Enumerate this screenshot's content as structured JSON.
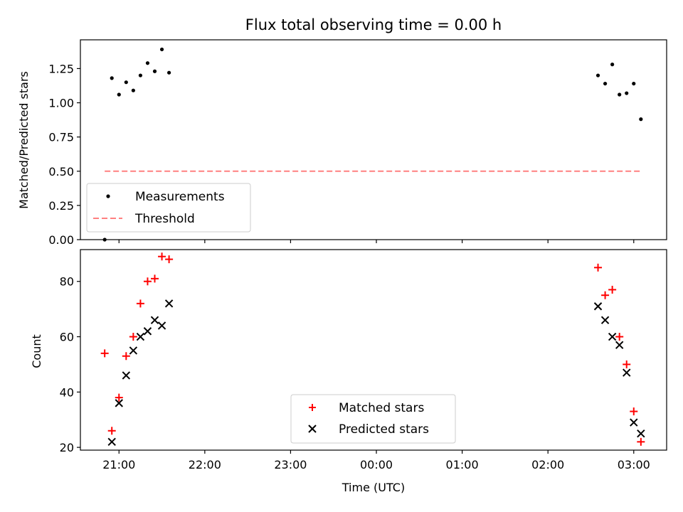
{
  "chart_data": [
    {
      "type": "scatter",
      "title": "Flux total observing time = 0.00 h",
      "xlabel": "",
      "ylabel": "Matched/Predicted stars",
      "x_ticks": [
        "21:00",
        "22:00",
        "23:00",
        "00:00",
        "01:00",
        "02:00",
        "03:00"
      ],
      "x_range": [
        "20:33",
        "03:23"
      ],
      "ylim": [
        0,
        1.46
      ],
      "y_ticks": [
        "0.00",
        "0.25",
        "0.50",
        "0.75",
        "1.00",
        "1.25"
      ],
      "legend_position": "lower-left",
      "series": [
        {
          "name": "Measurements",
          "marker": "dot",
          "color": "#000000",
          "points": [
            {
              "x": "20:50",
              "y": 0.0
            },
            {
              "x": "20:55",
              "y": 1.18
            },
            {
              "x": "21:00",
              "y": 1.06
            },
            {
              "x": "21:05",
              "y": 1.15
            },
            {
              "x": "21:10",
              "y": 1.09
            },
            {
              "x": "21:15",
              "y": 1.2
            },
            {
              "x": "21:20",
              "y": 1.29
            },
            {
              "x": "21:25",
              "y": 1.23
            },
            {
              "x": "21:30",
              "y": 1.39
            },
            {
              "x": "21:35",
              "y": 1.22
            },
            {
              "x": "02:35",
              "y": 1.2
            },
            {
              "x": "02:40",
              "y": 1.14
            },
            {
              "x": "02:45",
              "y": 1.28
            },
            {
              "x": "02:50",
              "y": 1.06
            },
            {
              "x": "02:55",
              "y": 1.07
            },
            {
              "x": "03:00",
              "y": 1.14
            },
            {
              "x": "03:05",
              "y": 0.88
            }
          ]
        },
        {
          "name": "Threshold",
          "marker": "dashed-line",
          "color": "#ff8080",
          "points": [
            {
              "x": "20:50",
              "y": 0.5
            },
            {
              "x": "03:05",
              "y": 0.5
            }
          ]
        }
      ]
    },
    {
      "type": "scatter",
      "title": "",
      "xlabel": "Time (UTC)",
      "ylabel": "Count",
      "x_ticks": [
        "21:00",
        "22:00",
        "23:00",
        "00:00",
        "01:00",
        "02:00",
        "03:00"
      ],
      "x_range": [
        "20:33",
        "03:23"
      ],
      "ylim": [
        19,
        91.5
      ],
      "y_ticks": [
        "20",
        "40",
        "60",
        "80"
      ],
      "legend_position": "lower-center",
      "series": [
        {
          "name": "Matched stars",
          "marker": "plus",
          "color": "#ff0000",
          "points": [
            {
              "x": "20:50",
              "y": 54
            },
            {
              "x": "20:55",
              "y": 26
            },
            {
              "x": "21:00",
              "y": 38
            },
            {
              "x": "21:05",
              "y": 53
            },
            {
              "x": "21:10",
              "y": 60
            },
            {
              "x": "21:15",
              "y": 72
            },
            {
              "x": "21:20",
              "y": 80
            },
            {
              "x": "21:25",
              "y": 81
            },
            {
              "x": "21:30",
              "y": 89
            },
            {
              "x": "21:35",
              "y": 88
            },
            {
              "x": "02:35",
              "y": 85
            },
            {
              "x": "02:40",
              "y": 75
            },
            {
              "x": "02:45",
              "y": 77
            },
            {
              "x": "02:50",
              "y": 60
            },
            {
              "x": "02:55",
              "y": 50
            },
            {
              "x": "03:00",
              "y": 33
            },
            {
              "x": "03:05",
              "y": 22
            }
          ]
        },
        {
          "name": "Predicted stars",
          "marker": "x",
          "color": "#000000",
          "points": [
            {
              "x": "20:55",
              "y": 22
            },
            {
              "x": "21:00",
              "y": 36
            },
            {
              "x": "21:05",
              "y": 46
            },
            {
              "x": "21:10",
              "y": 55
            },
            {
              "x": "21:15",
              "y": 60
            },
            {
              "x": "21:20",
              "y": 62
            },
            {
              "x": "21:25",
              "y": 66
            },
            {
              "x": "21:30",
              "y": 64
            },
            {
              "x": "21:35",
              "y": 72
            },
            {
              "x": "02:35",
              "y": 71
            },
            {
              "x": "02:40",
              "y": 66
            },
            {
              "x": "02:45",
              "y": 60
            },
            {
              "x": "02:50",
              "y": 57
            },
            {
              "x": "02:55",
              "y": 47
            },
            {
              "x": "03:00",
              "y": 29
            },
            {
              "x": "03:05",
              "y": 25
            }
          ]
        }
      ]
    }
  ]
}
